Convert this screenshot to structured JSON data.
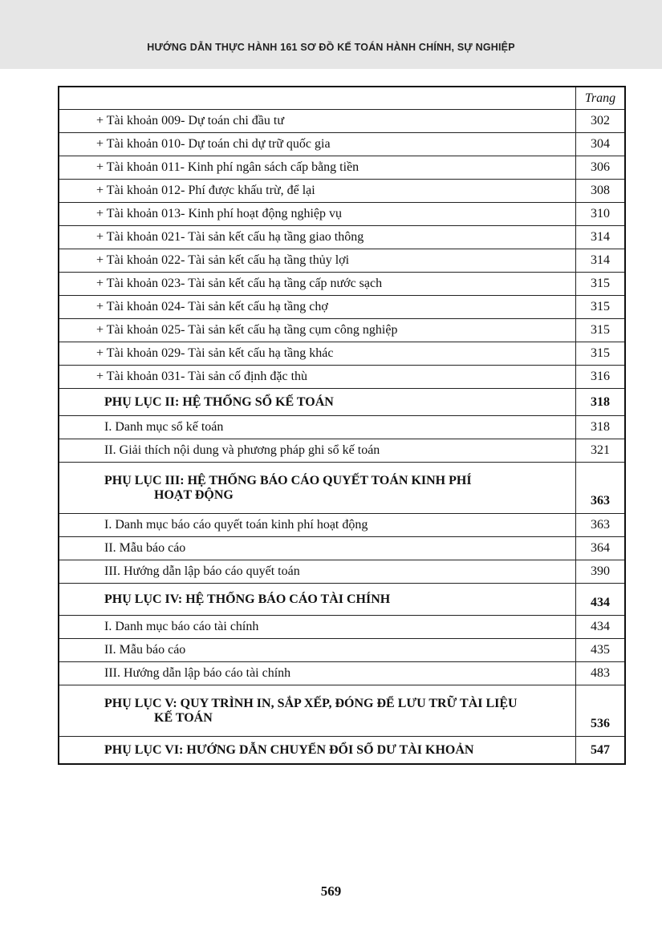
{
  "header": {
    "title": "HƯỚNG DẪN THỰC HÀNH 161 SƠ ĐỒ KẾ TOÁN HÀNH CHÍNH, SỰ NGHIỆP"
  },
  "toc": {
    "page_header": "Trang",
    "rows": [
      {
        "kind": "acct",
        "title": "+ Tài khoản 009- Dự toán chi đầu tư",
        "page": "302"
      },
      {
        "kind": "acct",
        "title": "+ Tài khoản 010- Dự toán chi dự trữ quốc gia",
        "page": "304"
      },
      {
        "kind": "acct",
        "title": "+ Tài khoản 011- Kinh phí ngân sách cấp bằng tiền",
        "page": "306"
      },
      {
        "kind": "acct",
        "title": "+ Tài khoản 012- Phí được khấu trừ, để lại",
        "page": "308"
      },
      {
        "kind": "acct",
        "title": "+ Tài khoản 013- Kinh phí hoạt động nghiệp vụ",
        "page": "310"
      },
      {
        "kind": "acct",
        "title": "+ Tài khoản 021- Tài sản kết cấu hạ tầng giao thông",
        "page": "314"
      },
      {
        "kind": "acct",
        "title": "+ Tài khoản 022- Tài sản kết cấu hạ tầng thủy lợi",
        "page": "314"
      },
      {
        "kind": "acct",
        "title": "+ Tài khoản 023- Tài sản kết cấu hạ tầng cấp nước sạch",
        "page": "315"
      },
      {
        "kind": "acct",
        "title": "+ Tài khoản 024- Tài sản kết cấu hạ tầng chợ",
        "page": "315"
      },
      {
        "kind": "acct",
        "title": "+ Tài khoản 025- Tài sản kết cấu hạ tầng cụm công nghiệp",
        "page": "315"
      },
      {
        "kind": "acct",
        "title": "+ Tài khoản 029- Tài sản kết cấu hạ tầng khác",
        "page": "315"
      },
      {
        "kind": "acct",
        "title": "+ Tài khoản 031- Tài sản cố định đặc thù",
        "page": "316"
      },
      {
        "kind": "sec",
        "title": "PHỤ LỤC II: HỆ THỐNG SỔ KẾ TOÁN",
        "page": "318"
      },
      {
        "kind": "sub",
        "title": "I. Danh mục sổ kế toán",
        "page": "318"
      },
      {
        "kind": "sub",
        "title": "II. Giải thích nội dung và phương pháp ghi sổ kế toán",
        "page": "321"
      },
      {
        "kind": "sec2",
        "title": "PHỤ LỤC III: HỆ THỐNG BÁO CÁO QUYẾT TOÁN KINH PHÍ",
        "title2": "HOẠT ĐỘNG",
        "page": "363"
      },
      {
        "kind": "sub",
        "title": "I. Danh mục báo cáo quyết toán kinh phí hoạt động",
        "page": "363"
      },
      {
        "kind": "sub",
        "title": "II. Mẫu báo cáo",
        "page": "364"
      },
      {
        "kind": "sub",
        "title": "III. Hướng dẫn lập báo cáo quyết toán",
        "page": "390"
      },
      {
        "kind": "sec1",
        "title": "PHỤ LỤC IV: HỆ THỐNG BÁO CÁO TÀI CHÍNH",
        "page": "434"
      },
      {
        "kind": "sub",
        "title": "I. Danh mục báo cáo tài chính",
        "page": "434"
      },
      {
        "kind": "sub",
        "title": "II. Mẫu báo cáo",
        "page": "435"
      },
      {
        "kind": "sub",
        "title": "III. Hướng dẫn lập báo cáo tài chính",
        "page": "483"
      },
      {
        "kind": "sec2",
        "title": "PHỤ LỤC V: QUY TRÌNH IN, SẮP XẾP, ĐÓNG ĐỂ LƯU TRỮ TÀI LIỆU",
        "title2": "KẾ TOÁN",
        "page": "536"
      },
      {
        "kind": "sec",
        "title": "PHỤ LỤC VI: HƯỚNG DẪN CHUYỂN ĐỔI SỐ DƯ TÀI KHOẢN",
        "page": "547"
      }
    ]
  },
  "footer": {
    "page_number": "569"
  }
}
